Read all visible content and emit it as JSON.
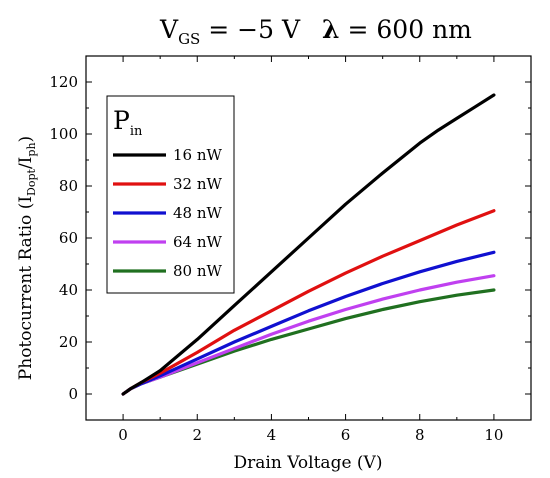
{
  "chart_data": {
    "type": "line",
    "title": {
      "vgs_symbol": "V",
      "vgs_subscript": "GS",
      "vgs_value": " = −5 V",
      "lambda_symbol": "λ",
      "lambda_value": " = 600 nm"
    },
    "xlabel": "Drain Voltage (V)",
    "ylabel": {
      "prefix": "Photocurrent Ratio (I",
      "sub1": "Dopt",
      "mid": "/I",
      "sub2": "ph",
      "suffix": ")"
    },
    "xlim": [
      -1,
      11
    ],
    "ylim": [
      -10,
      130
    ],
    "x_ticks": [
      0,
      2,
      4,
      6,
      8,
      10
    ],
    "y_ticks": [
      0,
      20,
      40,
      60,
      80,
      100,
      120
    ],
    "grid": false,
    "legend": {
      "title_symbol": "P",
      "title_subscript": "in",
      "placement": "top-left"
    },
    "series": [
      {
        "name": "16 nW",
        "color": "#000000",
        "x": [
          0,
          0.2,
          0.5,
          1,
          2,
          3,
          4,
          5,
          6,
          7,
          8,
          8.5,
          9,
          9.5,
          10
        ],
        "y": [
          0,
          2,
          4.5,
          9,
          21,
          34,
          47,
          60,
          73,
          85,
          96.5,
          101.5,
          106,
          110.5,
          115
        ]
      },
      {
        "name": "32 nW",
        "color": "#e01010",
        "x": [
          0,
          0.2,
          0.5,
          1,
          2,
          3,
          4,
          5,
          6,
          7,
          8,
          9,
          10
        ],
        "y": [
          0,
          2,
          4.5,
          8,
          16,
          24.5,
          32,
          39.5,
          46.5,
          53,
          59,
          65,
          70.5
        ]
      },
      {
        "name": "48 nW",
        "color": "#1010d0",
        "x": [
          0,
          0.2,
          0.5,
          1,
          2,
          3,
          4,
          5,
          6,
          7,
          8,
          9,
          10
        ],
        "y": [
          0,
          2,
          4,
          7,
          13.5,
          20,
          26,
          32,
          37.5,
          42.5,
          47,
          51,
          54.5
        ]
      },
      {
        "name": "64 nW",
        "color": "#c040f0",
        "x": [
          0,
          0.2,
          0.5,
          1,
          2,
          3,
          4,
          5,
          6,
          7,
          8,
          9,
          10
        ],
        "y": [
          0,
          2,
          4,
          6.5,
          12,
          17.5,
          23,
          28,
          32.5,
          36.5,
          40,
          43,
          45.5
        ]
      },
      {
        "name": "80 nW",
        "color": "#207020",
        "x": [
          0,
          0.2,
          0.5,
          1,
          2,
          3,
          4,
          5,
          6,
          7,
          8,
          9,
          10
        ],
        "y": [
          0,
          2,
          4,
          6.5,
          11.5,
          16.5,
          21,
          25,
          29,
          32.5,
          35.5,
          38,
          40
        ]
      }
    ]
  }
}
